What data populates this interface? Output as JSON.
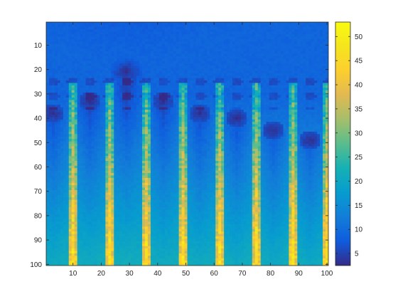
{
  "chart_data": {
    "type": "heatmap",
    "title": "",
    "xlabel": "",
    "ylabel": "",
    "x_range": [
      1,
      100
    ],
    "y_range": [
      1,
      100
    ],
    "y_direction": "reversed",
    "x_ticks": [
      10,
      20,
      30,
      40,
      50,
      60,
      70,
      80,
      90,
      100
    ],
    "y_ticks": [
      10,
      20,
      30,
      40,
      50,
      60,
      70,
      80,
      90,
      100
    ],
    "colormap": "parula",
    "color_range": [
      2.5,
      53
    ],
    "colorbar": {
      "ticks": [
        5,
        10,
        15,
        20,
        25,
        30,
        35,
        40,
        45,
        50
      ],
      "placement": "right"
    },
    "grid": false,
    "colors": {
      "low": "#352a87",
      "mid": "#21b1c4",
      "high": "#f9fb0e"
    }
  }
}
